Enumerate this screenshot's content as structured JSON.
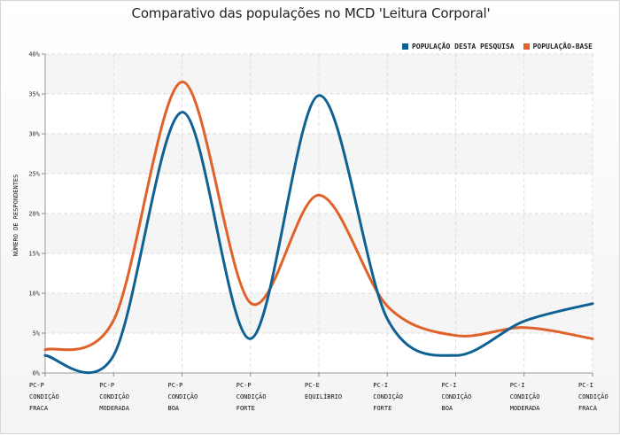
{
  "chart_data": {
    "type": "line",
    "title": "Comparativo das populações no MCD 'Leitura Corporal'",
    "ylabel": "NÚMERO DE RESPONDENTES",
    "xlabel": "",
    "ylim": [
      0,
      40
    ],
    "yticks": [
      "0%",
      "5%",
      "10%",
      "15%",
      "20%",
      "25%",
      "30%",
      "35%",
      "40%"
    ],
    "categories": [
      [
        "PC-P",
        "CONDIÇÃO",
        "FRACA"
      ],
      [
        "PC-P",
        "CONDIÇÃO",
        "MODERADA"
      ],
      [
        "PC-P",
        "CONDIÇÃO",
        "BOA"
      ],
      [
        "PC-P",
        "CONDIÇÃO",
        "FORTE"
      ],
      [
        "PC-E",
        "EQUILÍBRIO",
        ""
      ],
      [
        "PC-I",
        "CONDIÇÃO",
        "FORTE"
      ],
      [
        "PC-I",
        "CONDIÇÃO",
        "BOA"
      ],
      [
        "PC-I",
        "CONDIÇÃO",
        "MODERADA"
      ],
      [
        "PC-I",
        "CONDIÇÃO",
        "FRACA"
      ]
    ],
    "series": [
      {
        "name": "POPULAÇÃO DESTA PESQUISA",
        "color": "#0e6192",
        "values": [
          2.2,
          2.2,
          32.7,
          4.3,
          34.8,
          6.8,
          2.2,
          6.5,
          8.7
        ]
      },
      {
        "name": "POPULAÇÃO-BASE",
        "color": "#e0612a",
        "values": [
          2.9,
          6.6,
          36.5,
          8.8,
          22.3,
          8.4,
          4.7,
          5.7,
          4.3
        ]
      }
    ],
    "grid": true,
    "legend_position": "top-right"
  }
}
